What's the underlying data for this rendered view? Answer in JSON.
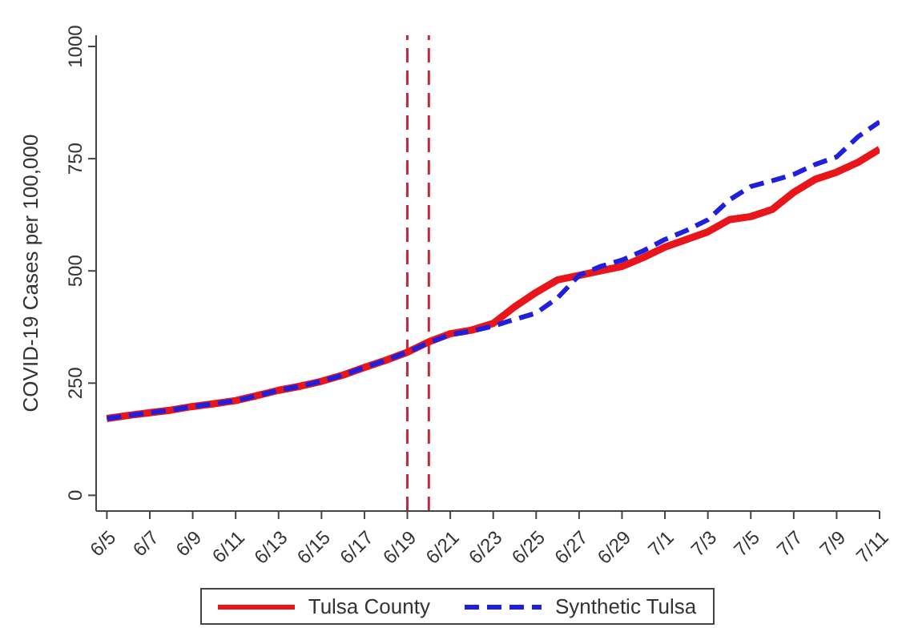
{
  "chart_data": {
    "type": "line",
    "ylabel": "COVID-19 Cases per 100,000",
    "x": [
      "--06-05",
      "--06-06",
      "--06-07",
      "--06-08",
      "--06-09",
      "--06-10",
      "--06-11",
      "--06-12",
      "--06-13",
      "--06-14",
      "--06-15",
      "--06-16",
      "--06-17",
      "--06-18",
      "--06-19",
      "--06-20",
      "--06-21",
      "--06-22",
      "--06-23",
      "--06-24",
      "--06-25",
      "--06-26",
      "--06-27",
      "--06-28",
      "--06-29",
      "--06-30",
      "--07-01",
      "--07-02",
      "--07-03",
      "--07-04",
      "--07-05",
      "--07-06",
      "--07-07",
      "--07-08",
      "--07-09",
      "--07-10",
      "--07-11"
    ],
    "series": [
      {
        "name": "Tulsa County",
        "color": "#e8161b",
        "line_style": "solid",
        "values": [
          171,
          178,
          184,
          190,
          198,
          204,
          211,
          222,
          234,
          243,
          254,
          268,
          285,
          301,
          319,
          342,
          360,
          368,
          383,
          420,
          452,
          480,
          490,
          500,
          510,
          530,
          553,
          570,
          587,
          614,
          621,
          637,
          675,
          704,
          720,
          742,
          771
        ]
      },
      {
        "name": "Synthetic Tulsa",
        "color": "#1f1fe0",
        "line_style": "dashed",
        "values": [
          171,
          178,
          184,
          190,
          198,
          204,
          211,
          222,
          234,
          243,
          254,
          268,
          285,
          301,
          319,
          340,
          358,
          366,
          377,
          392,
          406,
          440,
          490,
          510,
          524,
          545,
          570,
          590,
          614,
          658,
          688,
          701,
          715,
          737,
          754,
          799,
          832
        ]
      }
    ],
    "xlim": [
      "--06-04T12:00",
      "--07-11"
    ],
    "xticks": [
      {
        "value": "--06-05",
        "label": "6/5"
      },
      {
        "value": "--06-07",
        "label": "6/7"
      },
      {
        "value": "--06-09",
        "label": "6/9"
      },
      {
        "value": "--06-11",
        "label": "6/11"
      },
      {
        "value": "--06-13",
        "label": "6/13"
      },
      {
        "value": "--06-15",
        "label": "6/15"
      },
      {
        "value": "--06-17",
        "label": "6/17"
      },
      {
        "value": "--06-19",
        "label": "6/19"
      },
      {
        "value": "--06-21",
        "label": "6/21"
      },
      {
        "value": "--06-23",
        "label": "6/23"
      },
      {
        "value": "--06-25",
        "label": "6/25"
      },
      {
        "value": "--06-27",
        "label": "6/27"
      },
      {
        "value": "--06-29",
        "label": "6/29"
      },
      {
        "value": "--07-01",
        "label": "7/1"
      },
      {
        "value": "--07-03",
        "label": "7/3"
      },
      {
        "value": "--07-05",
        "label": "7/5"
      },
      {
        "value": "--07-07",
        "label": "7/7"
      },
      {
        "value": "--07-09",
        "label": "7/9"
      },
      {
        "value": "--07-11",
        "label": "7/11"
      }
    ],
    "ylim": [
      -35,
      1025
    ],
    "yticks": [
      0,
      250,
      500,
      750,
      1000
    ],
    "ref_lines": [
      {
        "axis": "x",
        "value": "--06-19",
        "color": "#c8283c",
        "line_style": "dashed"
      },
      {
        "axis": "x",
        "value": "--06-20",
        "color": "#c8283c",
        "line_style": "dashed"
      }
    ],
    "grid": false,
    "legend": "bottom",
    "marker": "none"
  }
}
